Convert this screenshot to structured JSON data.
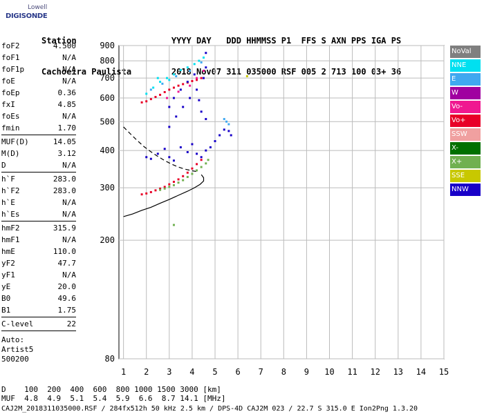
{
  "logo": {
    "line1": "Lowell",
    "line2": "DIGISONDE"
  },
  "header": {
    "row1": "Station                   YYYY DAY   DDD HHMMSS P1  FFS S AXN PPS IGA PS",
    "row2": "Cachoeira Paulista        2018 Nov07 311 035000 RSF 005 2 713 100 03+ 36"
  },
  "params": [
    {
      "name": "foF2",
      "value": "4.500"
    },
    {
      "name": "foF1",
      "value": "N/A"
    },
    {
      "name": "foF1p",
      "value": "N/A"
    },
    {
      "name": "foE",
      "value": "N/A"
    },
    {
      "name": "foEp",
      "value": "0.36"
    },
    {
      "name": "fxI",
      "value": "4.85"
    },
    {
      "name": "foEs",
      "value": "N/A"
    },
    {
      "name": "fmin",
      "value": "1.70"
    },
    {
      "sep": true
    },
    {
      "name": "MUF(D)",
      "value": "14.05"
    },
    {
      "name": "M(D)",
      "value": "3.12"
    },
    {
      "name": "D",
      "value": "N/A"
    },
    {
      "sep": true
    },
    {
      "name": "h`F",
      "value": "283.0"
    },
    {
      "name": "h`F2",
      "value": "283.0"
    },
    {
      "name": "h`E",
      "value": "N/A"
    },
    {
      "name": "h`Es",
      "value": "N/A"
    },
    {
      "sep": true
    },
    {
      "name": "hmF2",
      "value": "315.9"
    },
    {
      "name": "hmF1",
      "value": "N/A"
    },
    {
      "name": "hmE",
      "value": "110.0"
    },
    {
      "name": "yF2",
      "value": "47.7"
    },
    {
      "name": "yF1",
      "value": "N/A"
    },
    {
      "name": "yE",
      "value": "20.0"
    },
    {
      "name": "B0",
      "value": "49.6"
    },
    {
      "name": "B1",
      "value": "1.75"
    },
    {
      "sep": true
    },
    {
      "name": "C-level",
      "value": "22"
    },
    {
      "sep": true
    }
  ],
  "auto": {
    "line1": "Auto:",
    "line2": "Artist5",
    "line3": "500200"
  },
  "legend": [
    {
      "label": "NoVal",
      "color": "#7f7f7f"
    },
    {
      "label": "NNE",
      "color": "#00e0f0"
    },
    {
      "label": "E",
      "color": "#40a8f0"
    },
    {
      "label": "W",
      "color": "#a000a0"
    },
    {
      "label": "Vo-",
      "color": "#f01890"
    },
    {
      "label": "Vo+",
      "color": "#e80028"
    },
    {
      "label": "SSW",
      "color": "#f0a0a0"
    },
    {
      "label": "X-",
      "color": "#007000"
    },
    {
      "label": "X+",
      "color": "#70b050"
    },
    {
      "label": "SSE",
      "color": "#c8c800"
    },
    {
      "label": "NNW",
      "color": "#1800c8"
    }
  ],
  "footer": {
    "d_label": "D",
    "d_values": "100  200  400  600  800 1000 1500 3000 [km]",
    "muf_label": "MUF",
    "muf_values": "4.8  4.9  5.1  5.4  5.9  6.6  8.7 14.1 [MHz]",
    "file_line": "CAJ2M_2018311035000.RSF / 284fx512h 50 kHz 2.5 km / DPS-4D CAJ2M 023 / 22.7 S 315.0 E Ion2Png 1.3.20"
  },
  "chart_data": {
    "type": "scatter",
    "title": "",
    "xlabel": "",
    "ylabel": "",
    "xlim": [
      0.8,
      15
    ],
    "ylim": [
      80,
      900
    ],
    "y_scale": "log",
    "x_ticks": [
      "1",
      "2",
      "3",
      "4",
      "5",
      "6",
      "7",
      "8",
      "9",
      "10",
      "11",
      "12",
      "13",
      "14",
      "15"
    ],
    "y_ticks": [
      "80",
      "200",
      "300",
      "400",
      "500",
      "600",
      "700",
      "800",
      "900"
    ],
    "grid": true,
    "legend_placement": "right",
    "series": [
      {
        "name": "Vo+",
        "color": "#e80028",
        "points": [
          [
            1.8,
            285
          ],
          [
            2.0,
            287
          ],
          [
            2.2,
            290
          ],
          [
            2.4,
            294
          ],
          [
            2.6,
            298
          ],
          [
            2.8,
            302
          ],
          [
            3.0,
            308
          ],
          [
            3.2,
            314
          ],
          [
            3.4,
            320
          ],
          [
            3.6,
            328
          ],
          [
            3.8,
            337
          ],
          [
            4.0,
            348
          ],
          [
            4.2,
            360
          ],
          [
            4.4,
            372
          ],
          [
            1.8,
            580
          ],
          [
            2.0,
            585
          ],
          [
            2.2,
            595
          ],
          [
            2.4,
            605
          ],
          [
            2.6,
            615
          ],
          [
            2.8,
            628
          ],
          [
            3.0,
            640
          ],
          [
            3.2,
            650
          ],
          [
            3.4,
            660
          ],
          [
            3.6,
            668
          ],
          [
            3.8,
            676
          ],
          [
            4.0,
            684
          ],
          [
            4.2,
            690
          ],
          [
            4.4,
            700
          ]
        ]
      },
      {
        "name": "X+",
        "color": "#70b050",
        "points": [
          [
            2.6,
            295
          ],
          [
            2.8,
            298
          ],
          [
            3.0,
            302
          ],
          [
            3.2,
            306
          ],
          [
            3.4,
            312
          ],
          [
            3.6,
            318
          ],
          [
            3.8,
            326
          ],
          [
            4.0,
            334
          ],
          [
            4.2,
            343
          ],
          [
            4.4,
            352
          ],
          [
            4.6,
            362
          ],
          [
            4.7,
            372
          ],
          [
            3.2,
            225
          ]
        ]
      },
      {
        "name": "NNE",
        "color": "#00e0f0",
        "points": [
          [
            2.0,
            620
          ],
          [
            2.3,
            650
          ],
          [
            2.6,
            680
          ],
          [
            2.9,
            700
          ],
          [
            3.2,
            720
          ],
          [
            3.5,
            745
          ],
          [
            3.8,
            760
          ],
          [
            4.1,
            780
          ],
          [
            4.3,
            800
          ],
          [
            4.5,
            820
          ],
          [
            2.5,
            700
          ],
          [
            3.0,
            690
          ]
        ]
      },
      {
        "name": "E",
        "color": "#40a8f0",
        "points": [
          [
            2.2,
            640
          ],
          [
            2.7,
            670
          ],
          [
            3.3,
            710
          ],
          [
            3.9,
            740
          ],
          [
            4.4,
            790
          ],
          [
            5.4,
            510
          ],
          [
            5.5,
            500
          ],
          [
            5.6,
            490
          ]
        ]
      },
      {
        "name": "NNW",
        "color": "#1800c8",
        "points": [
          [
            2.0,
            380
          ],
          [
            2.2,
            375
          ],
          [
            2.5,
            390
          ],
          [
            2.8,
            405
          ],
          [
            3.0,
            380
          ],
          [
            3.2,
            370
          ],
          [
            3.5,
            410
          ],
          [
            3.8,
            395
          ],
          [
            4.0,
            420
          ],
          [
            4.2,
            390
          ],
          [
            4.4,
            380
          ],
          [
            4.6,
            400
          ],
          [
            4.8,
            410
          ],
          [
            5.0,
            430
          ],
          [
            5.2,
            450
          ],
          [
            5.4,
            470
          ],
          [
            5.6,
            465
          ],
          [
            5.7,
            450
          ],
          [
            3.0,
            480
          ],
          [
            3.3,
            520
          ],
          [
            3.6,
            560
          ],
          [
            3.9,
            600
          ],
          [
            4.2,
            640
          ],
          [
            4.5,
            700
          ],
          [
            4.6,
            760
          ],
          [
            4.6,
            850
          ],
          [
            3.5,
            640
          ],
          [
            3.8,
            680
          ],
          [
            4.1,
            720
          ],
          [
            4.3,
            590
          ],
          [
            4.4,
            540
          ],
          [
            4.6,
            510
          ],
          [
            3.0,
            560
          ],
          [
            3.2,
            600
          ]
        ]
      },
      {
        "name": "Vo-",
        "color": "#f01890",
        "points": [
          [
            2.9,
            600
          ],
          [
            3.4,
            630
          ],
          [
            3.9,
            660
          ],
          [
            4.5,
            740
          ],
          [
            4.2,
            700
          ]
        ]
      },
      {
        "name": "SSE",
        "color": "#c8c800",
        "points": [
          [
            6.4,
            710
          ]
        ]
      }
    ],
    "curves": [
      {
        "name": "profile",
        "style": "solid",
        "points": [
          [
            1.0,
            240
          ],
          [
            1.4,
            245
          ],
          [
            1.8,
            252
          ],
          [
            2.2,
            258
          ],
          [
            2.6,
            266
          ],
          [
            3.0,
            274
          ],
          [
            3.4,
            283
          ],
          [
            3.8,
            292
          ],
          [
            4.1,
            300
          ],
          [
            4.35,
            308
          ],
          [
            4.5,
            316
          ],
          [
            4.5,
            324
          ],
          [
            4.4,
            332
          ]
        ]
      },
      {
        "name": "extrapolation",
        "style": "dashed",
        "points": [
          [
            1.0,
            480
          ],
          [
            1.3,
            455
          ],
          [
            1.6,
            432
          ],
          [
            1.9,
            412
          ],
          [
            2.2,
            396
          ],
          [
            2.5,
            382
          ],
          [
            2.8,
            370
          ],
          [
            3.1,
            360
          ],
          [
            3.4,
            352
          ],
          [
            3.7,
            346
          ],
          [
            4.0,
            342
          ],
          [
            4.2,
            340
          ]
        ]
      }
    ]
  }
}
